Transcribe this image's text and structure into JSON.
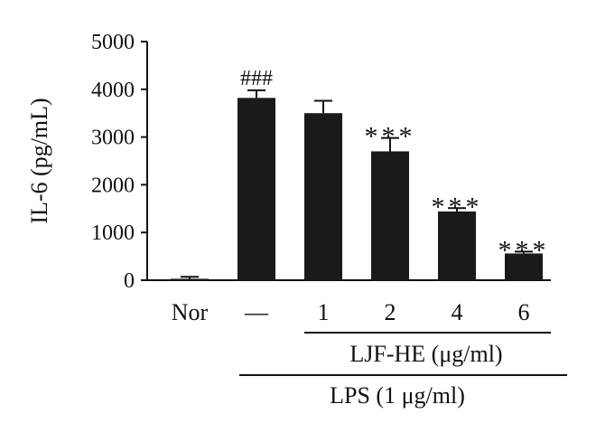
{
  "chart_data": {
    "type": "bar",
    "ylabel": "IL-6 (pg/mL)",
    "ylim": [
      0,
      5000
    ],
    "yticks": [
      0,
      1000,
      2000,
      3000,
      4000,
      5000
    ],
    "categories": [
      "Nor",
      "—",
      "1",
      "2",
      "4",
      "6"
    ],
    "values": [
      30,
      3820,
      3500,
      2700,
      1440,
      560
    ],
    "errors": [
      40,
      160,
      260,
      280,
      70,
      40
    ],
    "annotations": [
      "",
      "###",
      "",
      "***",
      "***",
      "***"
    ],
    "bar_color": "#1a1a1a",
    "group_labels": {
      "ljf": "LJF-HE (μg/ml)",
      "lps": "LPS (1 μg/ml)"
    }
  }
}
